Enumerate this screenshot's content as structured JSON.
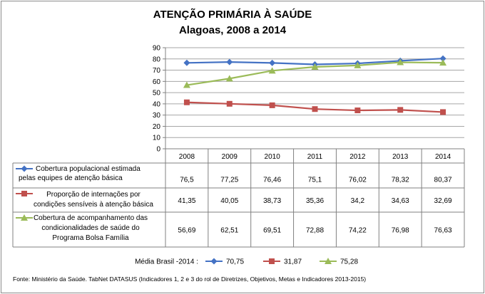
{
  "chart_data": {
    "type": "line",
    "title": "ATENÇÃO PRIMÁRIA À SAÚDE",
    "subtitle": "Alagoas, 2008 a 2014",
    "ylim": [
      0,
      90
    ],
    "yticks": [
      "90",
      "80",
      "70",
      "60",
      "50",
      "40",
      "30",
      "20",
      "10",
      "0"
    ],
    "categories": [
      "2008",
      "2009",
      "2010",
      "2011",
      "2012",
      "2013",
      "2014"
    ],
    "grid": true,
    "series": [
      {
        "name_lines": [
          "Cobertura populacional estimada",
          "pelas equipes de atenção básica"
        ],
        "color": "#4472c4",
        "marker": "diamond",
        "values": [
          76.5,
          77.25,
          76.46,
          75.1,
          76.02,
          78.32,
          80.37
        ],
        "labels": [
          "76,5",
          "77,25",
          "76,46",
          "75,1",
          "76,02",
          "78,32",
          "80,37"
        ]
      },
      {
        "name_lines": [
          "Proporção de internações por",
          "condições sensíveis à atenção básica"
        ],
        "color": "#c0504d",
        "marker": "square",
        "values": [
          41.35,
          40.05,
          38.73,
          35.36,
          34.2,
          34.63,
          32.69
        ],
        "labels": [
          "41,35",
          "40,05",
          "38,73",
          "35,36",
          "34,2",
          "34,63",
          "32,69"
        ]
      },
      {
        "name_lines": [
          "Cobertura de acompanhamento das",
          "condicionalidades de saúde do",
          "Programa Bolsa Família"
        ],
        "color": "#9bbb59",
        "marker": "triangle",
        "values": [
          56.69,
          62.51,
          69.51,
          72.88,
          74.22,
          76.98,
          76.63
        ],
        "labels": [
          "56,69",
          "62,51",
          "69,51",
          "72,88",
          "74,22",
          "76,98",
          "76,63"
        ]
      }
    ],
    "legend_caption": "Média Brasil -2014 :",
    "legend_values": [
      "70,75",
      "31,87",
      "75,28"
    ],
    "source": "Fonte: Ministério da Saúde. TabNet DATASUS (Indicadores 1, 2 e 3 do rol de Diretrizes, Objetivos, Metas e Indicadores 2013-2015)"
  }
}
